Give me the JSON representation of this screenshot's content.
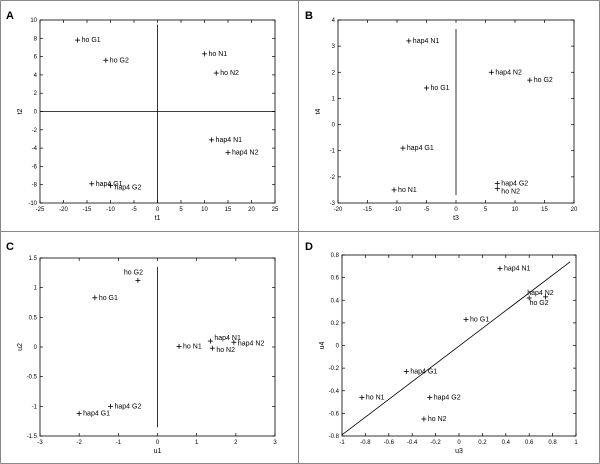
{
  "chart_data": [
    {
      "type": "scatter",
      "panel": "A",
      "xlabel": "t1",
      "ylabel": "t2",
      "xlim": [
        -25,
        25
      ],
      "ylim": [
        -10,
        10
      ],
      "xticks": [
        -25,
        -20,
        -15,
        -10,
        -5,
        0,
        5,
        10,
        15,
        20,
        25
      ],
      "yticks": [
        -10,
        -8,
        -6,
        -4,
        -2,
        0,
        2,
        4,
        6,
        8,
        10
      ],
      "ref_lines": [
        {
          "x1": -25,
          "y1": 0,
          "x2": 25,
          "y2": 0
        },
        {
          "x1": 0,
          "y1": -10,
          "x2": 0,
          "y2": 9.5
        }
      ],
      "points": [
        {
          "label": "ho G1",
          "x": -17,
          "y": 7.8
        },
        {
          "label": "ho G2",
          "x": -11,
          "y": 5.6
        },
        {
          "label": "ho N1",
          "x": 10,
          "y": 6.3
        },
        {
          "label": "ho N2",
          "x": 12.5,
          "y": 4.2
        },
        {
          "label": "hap4 N1",
          "x": 11.5,
          "y": -3.1
        },
        {
          "label": "hap4 N2",
          "x": 15,
          "y": -4.5
        },
        {
          "label": "hap4 G1",
          "x": -14,
          "y": -7.9
        },
        {
          "label": "hap4 G2",
          "x": -10,
          "y": -8.1
        }
      ]
    },
    {
      "type": "scatter",
      "panel": "B",
      "xlabel": "t3",
      "ylabel": "t4",
      "xlim": [
        -20,
        20
      ],
      "ylim": [
        -3,
        4
      ],
      "xticks": [
        -20,
        -15,
        -10,
        -5,
        0,
        5,
        10,
        15,
        20
      ],
      "yticks": [
        -3,
        -2,
        -1,
        0,
        1,
        2,
        3,
        4
      ],
      "ref_lines": [
        {
          "x1": 0,
          "y1": -2.7,
          "x2": 0,
          "y2": 3.65
        }
      ],
      "points": [
        {
          "label": "hap4 N1",
          "x": -8,
          "y": 3.2
        },
        {
          "label": "hap4 N2",
          "x": 6,
          "y": 2.0
        },
        {
          "label": "ho G2",
          "x": 12.5,
          "y": 1.7
        },
        {
          "label": "ho G1",
          "x": -5,
          "y": 1.4
        },
        {
          "label": "hap4 G1",
          "x": -9,
          "y": -0.9
        },
        {
          "label": "hap4 G2",
          "x": 7,
          "y": -2.25
        },
        {
          "label": "ho N1",
          "x": -10.5,
          "y": -2.5
        },
        {
          "label": "ho N2",
          "x": 7,
          "y": -2.45
        }
      ]
    },
    {
      "type": "scatter",
      "panel": "C",
      "xlabel": "u1",
      "ylabel": "u2",
      "xlim": [
        -3,
        3
      ],
      "ylim": [
        -1.5,
        1.5
      ],
      "xticks": [
        -3,
        -2,
        -1,
        0,
        1,
        2,
        3
      ],
      "yticks": [
        -1.5,
        -1,
        -0.5,
        0,
        0.5,
        1,
        1.5
      ],
      "ref_lines": [
        {
          "x1": 0,
          "y1": -1.35,
          "x2": 0,
          "y2": 1.35
        }
      ],
      "points": [
        {
          "label": "ho G2",
          "x": -0.5,
          "y": 1.12
        },
        {
          "label": "ho G1",
          "x": -1.6,
          "y": 0.83
        },
        {
          "label": "hap4 N1",
          "x": 1.35,
          "y": 0.1
        },
        {
          "label": "hap4 N2",
          "x": 1.95,
          "y": 0.08
        },
        {
          "label": "ho N1",
          "x": 0.55,
          "y": 0.01
        },
        {
          "label": "ho N2",
          "x": 1.4,
          "y": -0.02
        },
        {
          "label": "hap4 G2",
          "x": -1.2,
          "y": -1.0
        },
        {
          "label": "hap4 G1",
          "x": -2.0,
          "y": -1.12
        }
      ]
    },
    {
      "type": "scatter",
      "panel": "D",
      "xlabel": "u3",
      "ylabel": "u4",
      "xlim": [
        -1,
        1
      ],
      "ylim": [
        -0.8,
        0.8
      ],
      "xticks": [
        -1,
        -0.8,
        -0.6,
        -0.4,
        -0.2,
        0,
        0.2,
        0.4,
        0.6,
        0.8,
        1
      ],
      "yticks": [
        -0.8,
        -0.6,
        -0.4,
        -0.2,
        0,
        0.2,
        0.4,
        0.6,
        0.8
      ],
      "ref_lines": [
        {
          "x1": -1,
          "y1": -0.79,
          "x2": 0.95,
          "y2": 0.74
        }
      ],
      "points": [
        {
          "label": "hap4 N1",
          "x": 0.35,
          "y": 0.68
        },
        {
          "label": "hap4 N2",
          "x": 0.6,
          "y": 0.42
        },
        {
          "label": "ho G2",
          "x": 0.74,
          "y": 0.43
        },
        {
          "label": "ho G1",
          "x": 0.06,
          "y": 0.23
        },
        {
          "label": "hap4 G1",
          "x": -0.45,
          "y": -0.23
        },
        {
          "label": "ho N1",
          "x": -0.83,
          "y": -0.46
        },
        {
          "label": "hap4 G2",
          "x": -0.25,
          "y": -0.46
        },
        {
          "label": "ho N2",
          "x": -0.3,
          "y": -0.65
        }
      ]
    }
  ]
}
